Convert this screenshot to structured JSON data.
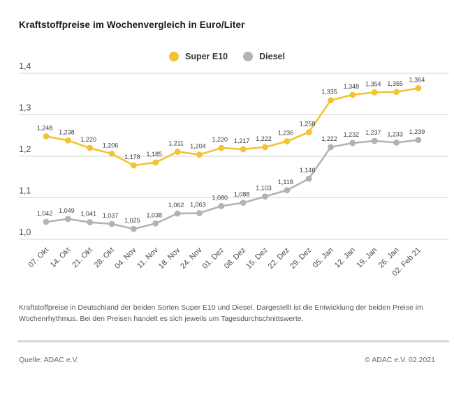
{
  "title": "Kraftstoffpreise im Wochenvergleich in Euro/Liter",
  "legend": {
    "items": [
      {
        "label": "Super E10",
        "color": "#F2C335"
      },
      {
        "label": "Diesel",
        "color": "#B3B3B6"
      }
    ]
  },
  "chart_data": {
    "type": "line",
    "title": "Kraftstoffpreise im Wochenvergleich in Euro/Liter",
    "xlabel": "",
    "ylabel": "",
    "ylim": [
      1.0,
      1.4
    ],
    "yticks": [
      1.0,
      1.1,
      1.2,
      1.3,
      1.4
    ],
    "grid": true,
    "legend_position": "top-center",
    "decimal_separator": ",",
    "categories": [
      "07. Okt",
      "14. Okt",
      "21. Okt",
      "28. Okt",
      "04. Nov",
      "11. Nov",
      "18. Nov",
      "24. Nov",
      "01. Dez",
      "08. Dez",
      "15. Dez",
      "22. Dez",
      "29. Dez",
      "05. Jan",
      "12. Jan",
      "19. Jan",
      "26. Jan",
      "02. Feb 21"
    ],
    "series": [
      {
        "name": "Super E10",
        "color": "#F2C335",
        "values": [
          1.248,
          1.238,
          1.22,
          1.206,
          1.178,
          1.185,
          1.211,
          1.204,
          1.22,
          1.217,
          1.222,
          1.236,
          1.258,
          1.335,
          1.348,
          1.354,
          1.355,
          1.364
        ]
      },
      {
        "name": "Diesel",
        "color": "#B3B3B6",
        "values": [
          1.042,
          1.049,
          1.041,
          1.037,
          1.025,
          1.038,
          1.062,
          1.063,
          1.08,
          1.088,
          1.103,
          1.118,
          1.146,
          1.222,
          1.232,
          1.237,
          1.233,
          1.239
        ]
      }
    ]
  },
  "caption": "Kraftstoffpreise in Deutschland der beiden Sorten Super E10 und Diesel. Dargestellt ist die Entwicklung der beiden Preise im Wochenrhythmus. Bei den Preisen handelt es sich jeweils um Tagesdurchschnittswerte.",
  "footer": {
    "source": "Quelle: ADAC e.V.",
    "copyright": "© ADAC e.V. 02.2021"
  }
}
